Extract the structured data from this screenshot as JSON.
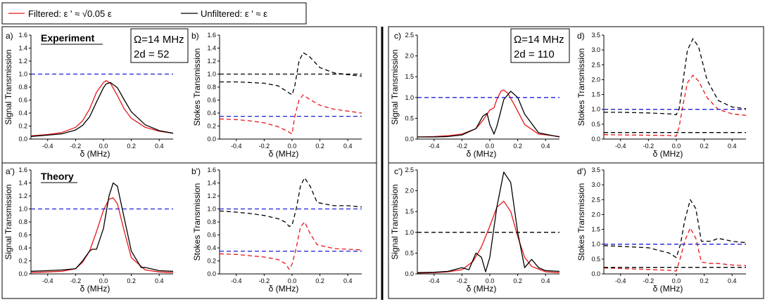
{
  "legend": {
    "filtered": "Filtered: ε ' ≈ √0.05 ε",
    "unfiltered": "Unfiltered: ε ' ≈ ε"
  },
  "colors": {
    "filtered": "#e8161b",
    "unfiltered": "#000000",
    "reference": "#1f1fd6"
  },
  "rows": {
    "experiment": "Experiment",
    "theory": "Theory"
  },
  "params": {
    "left": {
      "omega": "Ω=14 MHz",
      "od": "2d = 52"
    },
    "right": {
      "omega": "Ω=14 MHz",
      "od": "2d = 110"
    }
  },
  "chart_data": [
    {
      "id": "a",
      "label": "a)",
      "type": "line",
      "xlabel": "δ (MHz)",
      "ylabel": "Signal Transmission",
      "xlim": [
        -0.52,
        0.5
      ],
      "ylim": [
        0,
        1.6
      ],
      "xticks": [
        "-0.4",
        "-0.2",
        "0.0",
        "0.2",
        "0.4"
      ],
      "yticks": [
        "0.0",
        "0.2",
        "0.4",
        "0.6",
        "0.8",
        "1.0",
        "1.2",
        "1.4",
        "1.6"
      ],
      "series": [
        {
          "name": "Filtered",
          "color": "red",
          "style": "solid",
          "x": [
            -0.52,
            -0.4,
            -0.3,
            -0.2,
            -0.15,
            -0.1,
            -0.05,
            0,
            0.02,
            0.05,
            0.1,
            0.15,
            0.2,
            0.3,
            0.4,
            0.5
          ],
          "y": [
            0.05,
            0.07,
            0.1,
            0.18,
            0.28,
            0.46,
            0.72,
            0.87,
            0.9,
            0.86,
            0.67,
            0.46,
            0.32,
            0.18,
            0.12,
            0.09
          ]
        },
        {
          "name": "Unfiltered",
          "color": "black",
          "style": "solid",
          "x": [
            -0.52,
            -0.4,
            -0.3,
            -0.2,
            -0.15,
            -0.1,
            -0.05,
            0,
            0.02,
            0.05,
            0.1,
            0.15,
            0.2,
            0.3,
            0.4,
            0.5
          ],
          "y": [
            0.04,
            0.06,
            0.08,
            0.14,
            0.21,
            0.34,
            0.57,
            0.79,
            0.85,
            0.87,
            0.79,
            0.6,
            0.42,
            0.22,
            0.13,
            0.09
          ]
        },
        {
          "name": "Reference",
          "color": "blue",
          "style": "dashed",
          "x": [
            -0.52,
            0.5
          ],
          "y": [
            1,
            1
          ]
        }
      ]
    },
    {
      "id": "b",
      "label": "b)",
      "type": "line",
      "xlabel": "δ (MHz)",
      "ylabel": "Stokes Transmission",
      "xlim": [
        -0.52,
        0.5
      ],
      "ylim": [
        0,
        1.6
      ],
      "xticks": [
        "-0.4",
        "-0.2",
        "0.0",
        "0.2",
        "0.4"
      ],
      "yticks": [
        "0.0",
        "0.2",
        "0.4",
        "0.6",
        "0.8",
        "1.0",
        "1.2",
        "1.4",
        "1.6"
      ],
      "series": [
        {
          "name": "Unfiltered",
          "color": "black",
          "style": "dashed",
          "x": [
            -0.52,
            -0.4,
            -0.3,
            -0.2,
            -0.1,
            -0.05,
            0,
            0.02,
            0.05,
            0.08,
            0.12,
            0.2,
            0.3,
            0.4,
            0.5
          ],
          "y": [
            0.88,
            0.88,
            0.87,
            0.86,
            0.82,
            0.75,
            0.68,
            0.82,
            1.2,
            1.33,
            1.28,
            1.1,
            1.02,
            0.99,
            0.97
          ]
        },
        {
          "name": "Filtered",
          "color": "red",
          "style": "dashed",
          "x": [
            -0.52,
            -0.4,
            -0.3,
            -0.2,
            -0.1,
            -0.05,
            0,
            0.02,
            0.05,
            0.08,
            0.12,
            0.2,
            0.3,
            0.4,
            0.5
          ],
          "y": [
            0.31,
            0.3,
            0.28,
            0.25,
            0.19,
            0.14,
            0.08,
            0.35,
            0.6,
            0.68,
            0.62,
            0.52,
            0.46,
            0.43,
            0.4
          ]
        },
        {
          "name": "Reference",
          "color": "blue",
          "style": "dashed",
          "x": [
            -0.52,
            0.5
          ],
          "y": [
            0.35,
            0.35
          ]
        },
        {
          "name": "Reference",
          "color": "black",
          "style": "dashed",
          "x": [
            -0.52,
            0.5
          ],
          "y": [
            1,
            1
          ]
        }
      ]
    },
    {
      "id": "c",
      "label": "c)",
      "type": "line",
      "xlabel": "δ (MHz)",
      "ylabel": "Signal Transmission",
      "xlim": [
        -0.52,
        0.5
      ],
      "ylim": [
        0,
        2.5
      ],
      "xticks": [
        "-0.4",
        "-0.2",
        "0.0",
        "0.2",
        "0.4"
      ],
      "yticks": [
        "0.0",
        "0.5",
        "1.0",
        "1.5",
        "2.0",
        "2.5"
      ],
      "series": [
        {
          "name": "Filtered",
          "color": "red",
          "style": "solid",
          "x": [
            -0.52,
            -0.4,
            -0.3,
            -0.2,
            -0.1,
            -0.05,
            0,
            0.03,
            0.05,
            0.08,
            0.1,
            0.13,
            0.18,
            0.25,
            0.35,
            0.5
          ],
          "y": [
            0.05,
            0.06,
            0.08,
            0.12,
            0.25,
            0.45,
            0.7,
            0.75,
            0.95,
            1.15,
            1.18,
            1.1,
            0.8,
            0.35,
            0.12,
            0.06
          ]
        },
        {
          "name": "Unfiltered",
          "color": "black",
          "style": "solid",
          "x": [
            -0.52,
            -0.4,
            -0.3,
            -0.2,
            -0.1,
            -0.05,
            -0.02,
            0,
            0.03,
            0.05,
            0.1,
            0.15,
            0.2,
            0.25,
            0.35,
            0.5
          ],
          "y": [
            0.05,
            0.05,
            0.06,
            0.1,
            0.25,
            0.55,
            0.62,
            0.35,
            0.12,
            0.3,
            0.95,
            1.15,
            1.0,
            0.6,
            0.15,
            0.05
          ]
        },
        {
          "name": "Reference",
          "color": "blue",
          "style": "dashed",
          "x": [
            -0.52,
            0.5
          ],
          "y": [
            1,
            1
          ]
        }
      ]
    },
    {
      "id": "d",
      "label": "d)",
      "type": "line",
      "xlabel": "δ (MHz)",
      "ylabel": "Stokes Transmission",
      "xlim": [
        -0.52,
        0.5
      ],
      "ylim": [
        0,
        3.5
      ],
      "xticks": [
        "-0.4",
        "-0.2",
        "0.0",
        "0.2",
        "0.4"
      ],
      "yticks": [
        "0.0",
        "0.5",
        "1.0",
        "1.5",
        "2.0",
        "2.5",
        "3.0",
        "3.5"
      ],
      "series": [
        {
          "name": "Unfiltered",
          "color": "black",
          "style": "dashed",
          "x": [
            -0.52,
            -0.4,
            -0.2,
            -0.05,
            0,
            0.02,
            0.05,
            0.08,
            0.12,
            0.16,
            0.22,
            0.3,
            0.4,
            0.5
          ],
          "y": [
            0.9,
            0.9,
            0.88,
            0.85,
            0.82,
            1.0,
            2.0,
            3.0,
            3.38,
            3.1,
            2.0,
            1.3,
            1.08,
            1.02
          ]
        },
        {
          "name": "Filtered",
          "color": "red",
          "style": "dashed",
          "x": [
            -0.52,
            -0.4,
            -0.2,
            -0.05,
            0,
            0.02,
            0.05,
            0.08,
            0.12,
            0.16,
            0.22,
            0.3,
            0.4,
            0.5
          ],
          "y": [
            0.15,
            0.14,
            0.13,
            0.12,
            0.1,
            0.4,
            1.2,
            1.9,
            2.15,
            1.95,
            1.4,
            1.0,
            0.85,
            0.8
          ]
        },
        {
          "name": "Reference",
          "color": "blue",
          "style": "dashed",
          "x": [
            -0.52,
            0.5
          ],
          "y": [
            1,
            1
          ]
        },
        {
          "name": "Reference",
          "color": "black",
          "style": "dashed",
          "x": [
            -0.52,
            0.5
          ],
          "y": [
            0.22,
            0.22
          ]
        }
      ]
    },
    {
      "id": "a2",
      "label": "a')",
      "type": "line",
      "xlabel": "δ (MHz)",
      "ylabel": "Signal Transmission",
      "xlim": [
        -0.52,
        0.5
      ],
      "ylim": [
        0,
        1.6
      ],
      "xticks": [
        "-0.4",
        "-0.2",
        "0.0",
        "0.2",
        "0.4"
      ],
      "yticks": [
        "0.0",
        "0.2",
        "0.4",
        "0.6",
        "0.8",
        "1.0",
        "1.2",
        "1.4",
        "1.6"
      ],
      "series": [
        {
          "name": "Filtered",
          "color": "red",
          "style": "solid",
          "x": [
            -0.52,
            -0.4,
            -0.3,
            -0.2,
            -0.15,
            -0.1,
            -0.05,
            0,
            0.04,
            0.07,
            0.1,
            0.15,
            0.2,
            0.3,
            0.4,
            0.5
          ],
          "y": [
            0.02,
            0.03,
            0.04,
            0.08,
            0.18,
            0.35,
            0.65,
            0.98,
            1.15,
            1.17,
            1.08,
            0.65,
            0.25,
            0.06,
            0.03,
            0.02
          ]
        },
        {
          "name": "Unfiltered",
          "color": "black",
          "style": "solid",
          "x": [
            -0.52,
            -0.4,
            -0.3,
            -0.2,
            -0.15,
            -0.1,
            -0.08,
            -0.05,
            0,
            0.04,
            0.07,
            0.1,
            0.15,
            0.2,
            0.27,
            0.3,
            0.4,
            0.5
          ],
          "y": [
            0.04,
            0.05,
            0.06,
            0.08,
            0.2,
            0.35,
            0.38,
            0.38,
            0.7,
            1.2,
            1.4,
            1.35,
            0.85,
            0.35,
            0.1,
            0.1,
            0.05,
            0.04
          ]
        },
        {
          "name": "Reference",
          "color": "blue",
          "style": "dashed",
          "x": [
            -0.52,
            0.5
          ],
          "y": [
            1,
            1
          ]
        }
      ]
    },
    {
      "id": "b2",
      "label": "b')",
      "type": "line",
      "xlabel": "δ (MHz)",
      "ylabel": "Stokes Transmission",
      "xlim": [
        -0.52,
        0.5
      ],
      "ylim": [
        0,
        1.6
      ],
      "xticks": [
        "-0.4",
        "-0.2",
        "0.0",
        "0.2",
        "0.4"
      ],
      "yticks": [
        "0.0",
        "0.2",
        "0.4",
        "0.6",
        "0.8",
        "1.0",
        "1.2",
        "1.4",
        "1.6"
      ],
      "series": [
        {
          "name": "Unfiltered",
          "color": "black",
          "style": "dashed",
          "x": [
            -0.52,
            -0.4,
            -0.3,
            -0.2,
            -0.1,
            -0.05,
            -0.02,
            0,
            0.03,
            0.06,
            0.09,
            0.13,
            0.18,
            0.3,
            0.4,
            0.5
          ],
          "y": [
            0.97,
            0.95,
            0.93,
            0.9,
            0.85,
            0.8,
            0.73,
            0.75,
            1.0,
            1.35,
            1.48,
            1.35,
            1.1,
            1.05,
            1.05,
            1.03
          ]
        },
        {
          "name": "Filtered",
          "color": "red",
          "style": "dashed",
          "x": [
            -0.52,
            -0.4,
            -0.3,
            -0.2,
            -0.1,
            -0.05,
            -0.02,
            0,
            0.03,
            0.06,
            0.09,
            0.13,
            0.18,
            0.3,
            0.4,
            0.5
          ],
          "y": [
            0.31,
            0.3,
            0.28,
            0.26,
            0.22,
            0.16,
            0.07,
            0.15,
            0.4,
            0.72,
            0.8,
            0.62,
            0.45,
            0.39,
            0.38,
            0.37
          ]
        },
        {
          "name": "Reference",
          "color": "blue",
          "style": "dashed",
          "x": [
            -0.52,
            0.5
          ],
          "y": [
            0.35,
            0.35
          ]
        },
        {
          "name": "Reference",
          "color": "blue",
          "style": "dashed",
          "x": [
            -0.52,
            0.5
          ],
          "y": [
            1,
            1
          ]
        }
      ]
    },
    {
      "id": "c2",
      "label": "c')",
      "type": "line",
      "xlabel": "δ (MHz)",
      "ylabel": "Signal Transmission",
      "xlim": [
        -0.52,
        0.5
      ],
      "ylim": [
        0,
        2.5
      ],
      "xticks": [
        "-0.4",
        "-0.2",
        "0.0",
        "0.2",
        "0.4"
      ],
      "yticks": [
        "0.0",
        "0.5",
        "1.0",
        "1.5",
        "2.0",
        "2.5"
      ],
      "series": [
        {
          "name": "Filtered",
          "color": "red",
          "style": "solid",
          "x": [
            -0.52,
            -0.4,
            -0.3,
            -0.2,
            -0.12,
            -0.06,
            0,
            0.05,
            0.1,
            0.15,
            0.2,
            0.25,
            0.3,
            0.4,
            0.5
          ],
          "y": [
            0.02,
            0.03,
            0.05,
            0.1,
            0.3,
            0.65,
            1.15,
            1.6,
            1.75,
            1.5,
            0.9,
            0.4,
            0.18,
            0.05,
            0.03
          ]
        },
        {
          "name": "Unfiltered",
          "color": "black",
          "style": "solid",
          "x": [
            -0.52,
            -0.4,
            -0.3,
            -0.2,
            -0.15,
            -0.1,
            -0.06,
            -0.03,
            0,
            0.05,
            0.1,
            0.15,
            0.2,
            0.25,
            0.3,
            0.35,
            0.4,
            0.5
          ],
          "y": [
            0.03,
            0.04,
            0.06,
            0.15,
            0.1,
            0.5,
            0.4,
            0.05,
            0.4,
            1.6,
            2.45,
            2.2,
            1.0,
            0.15,
            0.35,
            0.15,
            0.08,
            0.06
          ]
        },
        {
          "name": "Reference",
          "color": "black",
          "style": "dashed",
          "x": [
            -0.52,
            0.5
          ],
          "y": [
            1,
            1
          ]
        }
      ]
    },
    {
      "id": "d2",
      "label": "d')",
      "type": "line",
      "xlabel": "δ (MHz)",
      "ylabel": "Stokes Transmission",
      "xlim": [
        -0.52,
        0.5
      ],
      "ylim": [
        0,
        3.5
      ],
      "xticks": [
        "-0.4",
        "-0.2",
        "0.0",
        "0.2",
        "0.4"
      ],
      "yticks": [
        "0.0",
        "0.5",
        "1.0",
        "1.5",
        "2.0",
        "2.5",
        "3.0",
        "3.5"
      ],
      "series": [
        {
          "name": "Unfiltered",
          "color": "black",
          "style": "dashed",
          "x": [
            -0.52,
            -0.4,
            -0.2,
            -0.05,
            0,
            0.03,
            0.06,
            0.1,
            0.14,
            0.18,
            0.25,
            0.3,
            0.4,
            0.5
          ],
          "y": [
            0.95,
            0.93,
            0.88,
            0.7,
            0.55,
            1.0,
            1.8,
            2.5,
            2.2,
            1.1,
            1.1,
            1.2,
            1.1,
            1.05
          ]
        },
        {
          "name": "Filtered",
          "color": "red",
          "style": "dashed",
          "x": [
            -0.52,
            -0.4,
            -0.2,
            -0.05,
            0,
            0.03,
            0.06,
            0.1,
            0.14,
            0.18,
            0.25,
            0.3,
            0.4,
            0.5
          ],
          "y": [
            0.2,
            0.18,
            0.15,
            0.12,
            0.1,
            0.55,
            1.1,
            1.55,
            1.2,
            0.4,
            0.35,
            0.35,
            0.3,
            0.28
          ]
        },
        {
          "name": "Reference",
          "color": "blue",
          "style": "dashed",
          "x": [
            -0.52,
            0.5
          ],
          "y": [
            1,
            1
          ]
        },
        {
          "name": "Reference",
          "color": "black",
          "style": "dashed",
          "x": [
            -0.52,
            0.5
          ],
          "y": [
            0.22,
            0.22
          ]
        }
      ]
    }
  ]
}
